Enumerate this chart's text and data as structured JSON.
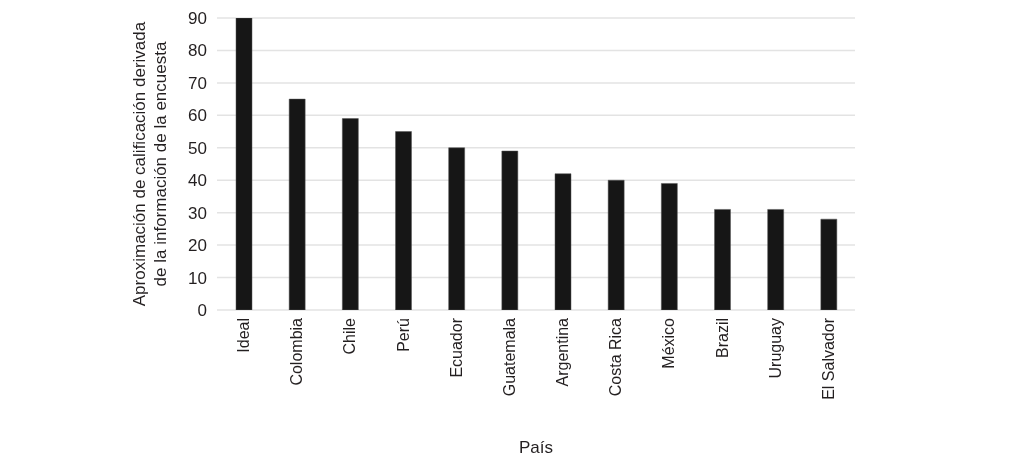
{
  "chart_data": {
    "type": "bar",
    "xlabel": "País",
    "ylabel": "Aproximación de calificación derivada de la información de la encuesta",
    "categories": [
      "Ideal",
      "Colombia",
      "Chile",
      "Perú",
      "Ecuador",
      "Guatemala",
      "Argentina",
      "Costa Rica",
      "México",
      "Brazil",
      "Uruguay",
      "El Salvador"
    ],
    "values": [
      90,
      65,
      59,
      55,
      50,
      49,
      42,
      40,
      39,
      31,
      31,
      28
    ],
    "color": "#161616",
    "ylim": [
      0,
      90
    ],
    "yticks": [
      0,
      10,
      20,
      30,
      40,
      50,
      60,
      70,
      80,
      90
    ],
    "grid": "y"
  }
}
